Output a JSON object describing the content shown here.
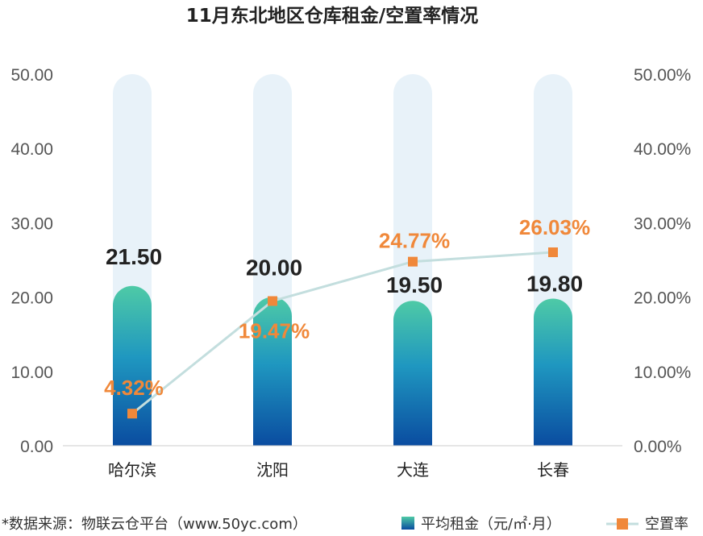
{
  "chart_data": {
    "type": "bar",
    "title": "11月东北地区仓库租金/空置率情况",
    "categories": [
      "哈尔滨",
      "沈阳",
      "大连",
      "长春"
    ],
    "series": [
      {
        "name": "平均租金（元/㎡·月）",
        "type": "bar",
        "axis": "left",
        "values": [
          21.5,
          20.0,
          19.5,
          19.8
        ],
        "labels": [
          "21.50",
          "20.00",
          "19.50",
          "19.80"
        ],
        "color_top": "#4ecaa6",
        "color_bottom": "#0a4ca0"
      },
      {
        "name": "空置率",
        "type": "line",
        "axis": "right",
        "values": [
          4.32,
          19.47,
          24.77,
          26.03
        ],
        "labels": [
          "4.32%",
          "19.47%",
          "24.77%",
          "26.03%"
        ],
        "color": "#f0883a",
        "line_color": "#c3dede"
      }
    ],
    "y_left": {
      "range": [
        0,
        50
      ],
      "ticks": [
        "0.00",
        "10.00",
        "20.00",
        "30.00",
        "40.00",
        "50.00"
      ]
    },
    "y_right": {
      "range": [
        0,
        50
      ],
      "ticks": [
        "0.00%",
        "10.00%",
        "20.00%",
        "30.00%",
        "40.00%",
        "50.00%"
      ]
    },
    "background_bar_color": "#e8f2f9",
    "grid": false,
    "legend_position": "bottom-right"
  },
  "footer": {
    "source": "*数据来源：物联云仓平台（www.50yc.com）"
  }
}
